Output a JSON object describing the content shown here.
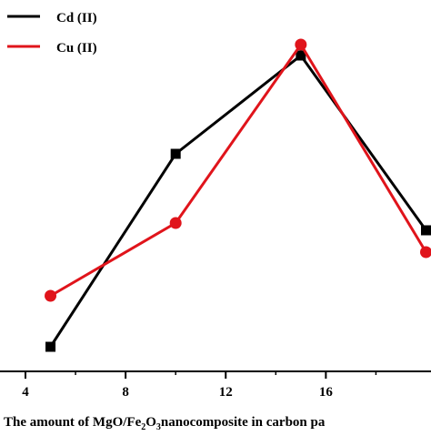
{
  "chart_data": {
    "type": "line",
    "xlabel_parts": [
      "The amount of MgO/Fe",
      "2",
      "O",
      "3",
      "nanocomposite in carbon pa"
    ],
    "ylabel": "",
    "x_ticks": [
      4,
      8,
      12,
      16
    ],
    "xlim": [
      4,
      20.2
    ],
    "ylim": [
      0,
      100
    ],
    "grid": false,
    "legend_position": "top-left",
    "series": [
      {
        "name": "Cd (II)",
        "color": "#000000",
        "marker": "square",
        "x": [
          5,
          10,
          15,
          20
        ],
        "y": [
          6,
          59,
          86,
          38
        ]
      },
      {
        "name": "Cu (II)",
        "color": "#e0141b",
        "marker": "circle",
        "x": [
          5,
          10,
          15,
          20
        ],
        "y": [
          20,
          40,
          89,
          32
        ]
      }
    ]
  }
}
